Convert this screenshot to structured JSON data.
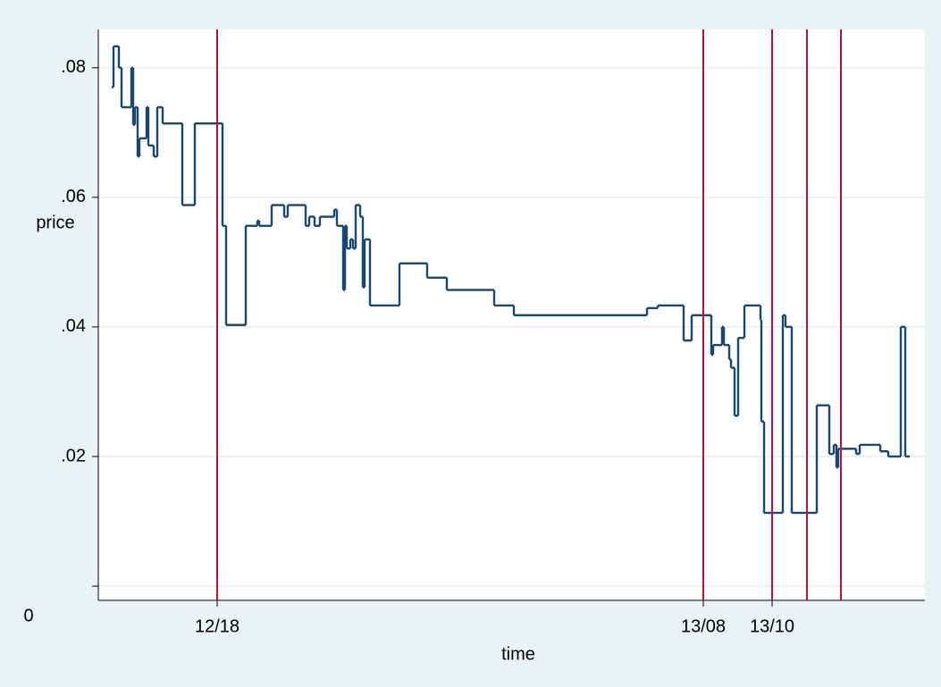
{
  "chart_data": {
    "type": "line",
    "step": true,
    "y_label": "price",
    "x_label": "time",
    "xlim": [
      0,
      925
    ],
    "ylim": [
      -0.0022,
      0.0859
    ],
    "xticks": [
      {
        "value": 133,
        "label": "12/18"
      },
      {
        "value": 677,
        "label": "13/08"
      },
      {
        "value": 754,
        "label": "13/10"
      }
    ],
    "yticks": [
      {
        "value": 0,
        "label": "0"
      },
      {
        "value": 0.02,
        "label": ".02"
      },
      {
        "value": 0.04,
        "label": ".04"
      },
      {
        "value": 0.06,
        "label": ".06"
      },
      {
        "value": 0.08,
        "label": ".08"
      }
    ],
    "grid": true,
    "vlines": [
      133,
      677,
      754,
      793,
      831
    ],
    "vline_color": "#b5123c",
    "series": [
      {
        "color": "#1a476f",
        "x": [
          15,
          17,
          23,
          26,
          37,
          39,
          41,
          44,
          46,
          54,
          56,
          62,
          66,
          72,
          94,
          108,
          139,
          143,
          165,
          178,
          180,
          194,
          208,
          212,
          232,
          236,
          242,
          248,
          264,
          267,
          274,
          276,
          278,
          282,
          285,
          288,
          293,
          296,
          298,
          304,
          337,
          368,
          390,
          443,
          465,
          614,
          626,
          655,
          664,
          686,
          688,
          698,
          700,
          706,
          708,
          712,
          716,
          723,
          741,
          742,
          745,
          766,
          769,
          776,
          804,
          818,
          823,
          826,
          828,
          848,
          852,
          875,
          884,
          898,
          903,
          908
        ],
        "values": [
          0.077,
          0.0833,
          0.08,
          0.0739,
          0.08,
          0.0712,
          0.0739,
          0.0663,
          0.0691,
          0.0739,
          0.068,
          0.0663,
          0.0739,
          0.0714,
          0.0588,
          0.0714,
          0.0556,
          0.0403,
          0.0556,
          0.0564,
          0.0556,
          0.0588,
          0.057,
          0.0588,
          0.0556,
          0.057,
          0.0556,
          0.057,
          0.0581,
          0.0556,
          0.0457,
          0.0556,
          0.0521,
          0.0535,
          0.0521,
          0.0588,
          0.057,
          0.0461,
          0.0535,
          0.0433,
          0.0498,
          0.0476,
          0.0457,
          0.0433,
          0.0418,
          0.0429,
          0.0433,
          0.0379,
          0.0418,
          0.0357,
          0.0372,
          0.04,
          0.0372,
          0.035,
          0.0337,
          0.0263,
          0.0383,
          0.0433,
          0.0411,
          0.0254,
          0.0113,
          0.0418,
          0.04,
          0.0113,
          0.0279,
          0.0204,
          0.0218,
          0.0183,
          0.0212,
          0.0204,
          0.0218,
          0.0208,
          0.02,
          0.04,
          0.02,
          0.02
        ]
      }
    ]
  }
}
